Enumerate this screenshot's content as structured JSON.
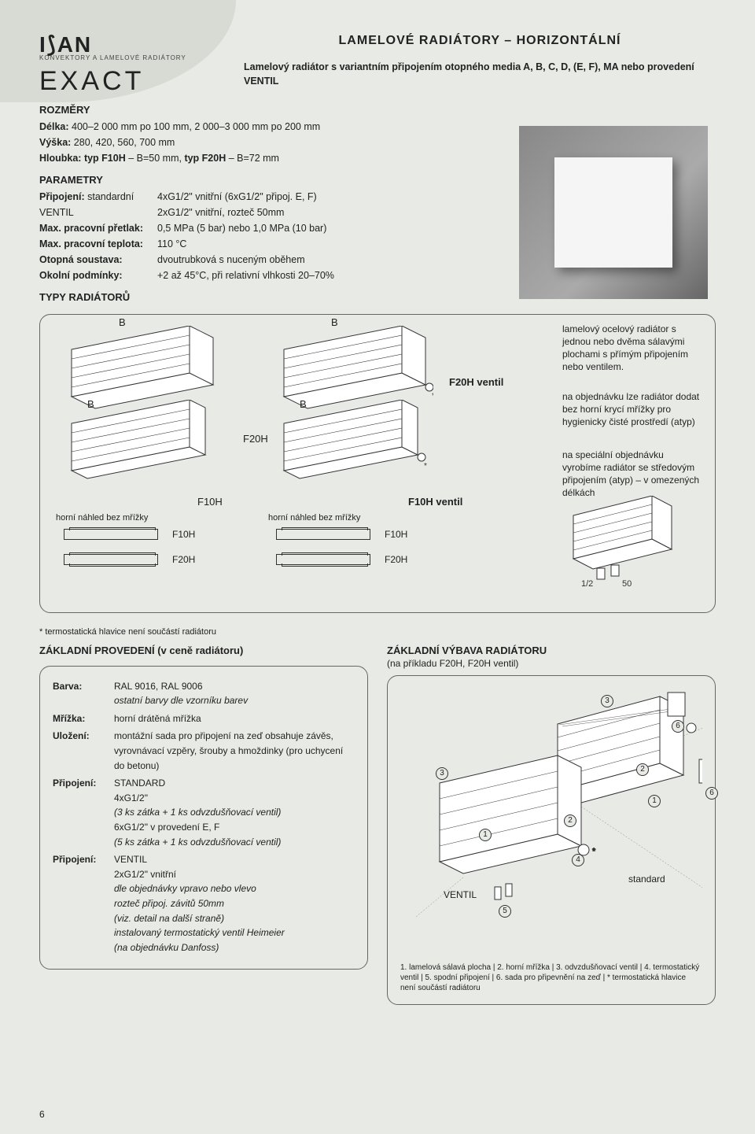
{
  "brand": {
    "logo": "I⟆AN",
    "tagline": "KONVEKTORY A LAMELOVÉ RADIÁTORY",
    "product_line": "EXACT"
  },
  "title": "LAMELOVÉ RADIÁTORY – HORIZONTÁLNÍ",
  "subtitle": "Lamelový radiátor s variantním připojením otopného media A, B, C, D, (E, F), MA nebo provedení VENTIL",
  "dimensions": {
    "heading": "ROZMĚRY",
    "delka": "Délka: 400–2 000 mm po 100 mm, 2 000–3 000 mm po 200 mm",
    "vyska": "Výška: 280, 420, 560, 700 mm",
    "hloubka": "Hloubka: typ F10H – B=50 mm, typ F20H – B=72 mm"
  },
  "parameters": {
    "heading": "PARAMETRY",
    "rows": [
      {
        "k": "Připojení:",
        "k2": "standardní",
        "v": "4xG1/2\" vnitřní (6xG1/2\" připoj. E, F)"
      },
      {
        "k": "",
        "k2": "VENTIL",
        "v": "2xG1/2\" vnitřní, rozteč 50mm"
      },
      {
        "k": "Max. pracovní přetlak:",
        "k2": "",
        "v": "0,5 MPa (5 bar) nebo 1,0 MPa (10 bar)"
      },
      {
        "k": "Max. pracovní teplota:",
        "k2": "",
        "v": "110 °C"
      },
      {
        "k": "Otopná soustava:",
        "k2": "",
        "v": "dvoutrubková s nuceným oběhem"
      },
      {
        "k": "Okolní podmínky:",
        "k2": "",
        "v": "+2 až 45°C, při relativní vlhkosti 20–70%"
      }
    ]
  },
  "types_heading": "TYPY RADIÁTORŮ",
  "diagram": {
    "labels": {
      "B": "B",
      "F20H": "F20H",
      "F10H": "F10H",
      "F20H_ventil": "F20H ventil",
      "F10H_ventil": "F10H ventil",
      "top_caption": "horní náhled bez mřížky",
      "conn_half": "1/2",
      "conn_50": "50"
    },
    "side_texts": [
      "lamelový ocelový radiátor s jednou nebo dvěma sálavými plochami s přímým připojením nebo ventilem.",
      "na objednávku lze radiátor dodat bez horní krycí mřížky pro hygienicky čisté prostředí (atyp)",
      "na speciální objednávku vyrobíme radiátor se středovým připojením (atyp) – v omezených délkách"
    ],
    "colors": {
      "stroke": "#333333",
      "fill": "#ffffff",
      "bg": "#e8eae5"
    }
  },
  "footnote_star": "* termostatická hlavice není součástí radiátoru",
  "basic_left": {
    "heading": "ZÁKLADNÍ PROVEDENÍ (v ceně radiátoru)",
    "items": [
      {
        "k": "Barva:",
        "v": "RAL 9016, RAL 9006\nostatní barvy dle vzorníku barev"
      },
      {
        "k": "Mřížka:",
        "v": "horní drátěná mřížka"
      },
      {
        "k": "Uložení:",
        "v": "montážní sada pro připojení na zeď obsahuje závěs, vyrovnávací vzpěry, šrouby a hmoždinky (pro uchycení do betonu)"
      },
      {
        "k": "Připojení:",
        "v": "STANDARD\n4xG1/2\"\n(3 ks zátka + 1 ks odvzdušňovací ventil)\n6xG1/2\" v provedení E, F\n(5 ks zátka + 1 ks odvzdušňovací ventil)"
      },
      {
        "k": "Připojení:",
        "v": "VENTIL\n2xG1/2\" vnitřní\ndle objednávky vpravo nebo vlevo\nrozteč připoj. závitů 50mm\n(viz. detail na další straně)\ninstalovaný termostatický ventil Heimeier\n(na objednávku Danfoss)"
      }
    ]
  },
  "basic_right": {
    "heading": "ZÁKLADNÍ VÝBAVA RADIÁTORU",
    "sub": "(na příkladu F20H, F20H ventil)",
    "labels": {
      "ventil": "VENTIL",
      "standard": "standard"
    },
    "numbers": [
      "1",
      "2",
      "3",
      "4",
      "5",
      "6"
    ],
    "legend": "1. lamelová sálavá plocha | 2. horní mřížka | 3. odvzdušňovací ventil | 4. termostatický ventil | 5. spodní připojení | 6. sada pro připevnění na zeď | * termostatická hlavice není součástí radiátoru"
  },
  "page_number": "6"
}
